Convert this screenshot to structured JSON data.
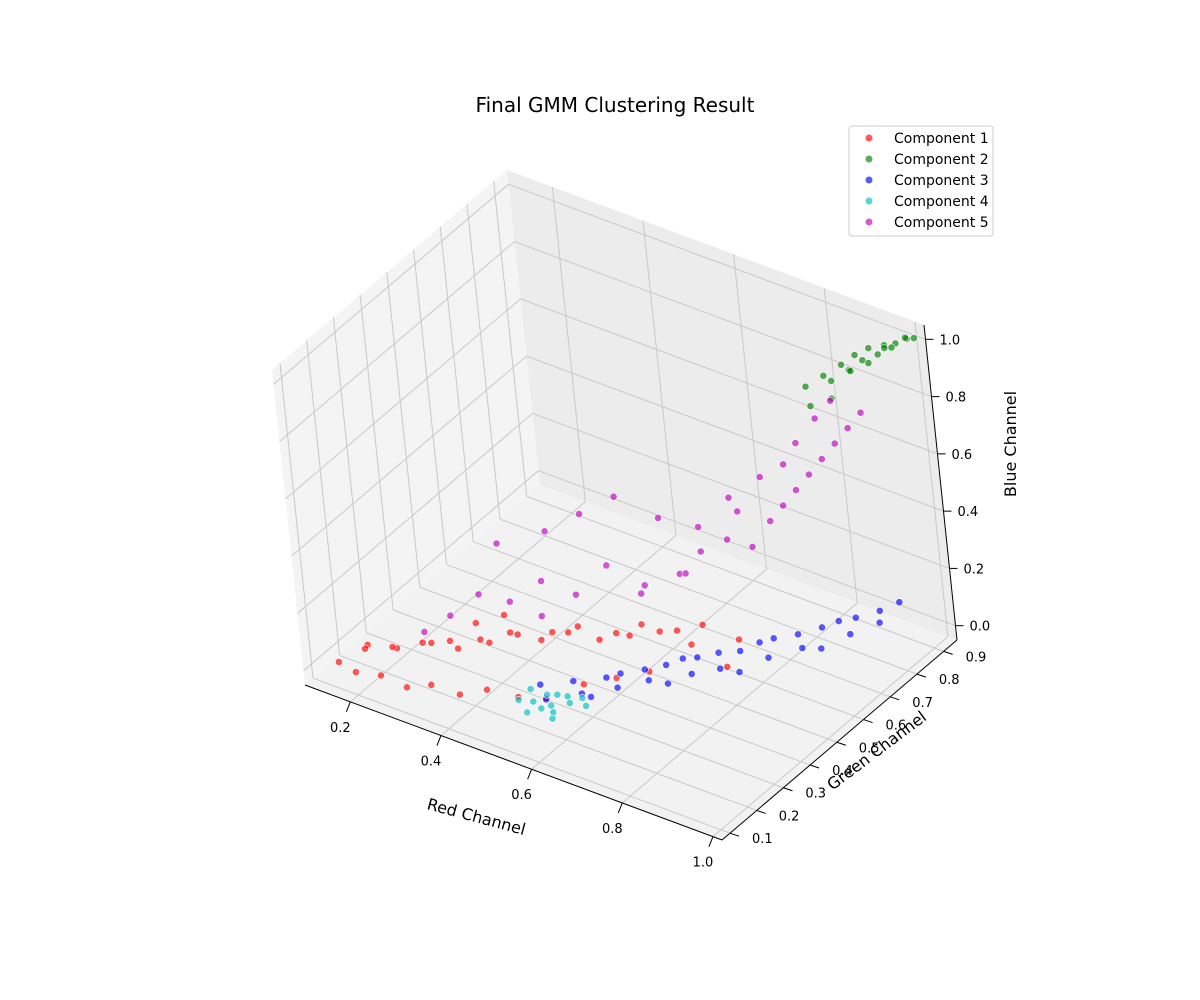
{
  "chart_data": {
    "type": "scatter",
    "projection": "3d",
    "title": "Final GMM Clustering Result",
    "xlabel": "Red Channel",
    "ylabel": "Green Channel",
    "zlabel": "Blue Channel",
    "xlim": [
      0.1,
      1.02
    ],
    "ylim": [
      0.07,
      0.95
    ],
    "zlim": [
      -0.05,
      1.05
    ],
    "xticks": [
      "0.2",
      "0.4",
      "0.6",
      "0.8",
      "1.0"
    ],
    "yticks": [
      "0.1",
      "0.2",
      "0.3",
      "0.4",
      "0.5",
      "0.6",
      "0.7",
      "0.8",
      "0.9"
    ],
    "zticks": [
      "0.0",
      "0.2",
      "0.4",
      "0.6",
      "0.8",
      "1.0"
    ],
    "grid": true,
    "legend_position": "top-right",
    "series": [
      {
        "name": "Component 1",
        "color": "#ff0000",
        "x": [
          0.15,
          0.18,
          0.2,
          0.22,
          0.25,
          0.28,
          0.3,
          0.32,
          0.35,
          0.38,
          0.4,
          0.42,
          0.45,
          0.48,
          0.5,
          0.52,
          0.55,
          0.58,
          0.6,
          0.62,
          0.65,
          0.68,
          0.7,
          0.72,
          0.75,
          0.78,
          0.8,
          0.55,
          0.5,
          0.45,
          0.4,
          0.35,
          0.3,
          0.25,
          0.2,
          0.6,
          0.65,
          0.7,
          0.42,
          0.38
        ],
        "y": [
          0.12,
          0.18,
          0.14,
          0.22,
          0.16,
          0.25,
          0.19,
          0.28,
          0.21,
          0.3,
          0.24,
          0.34,
          0.27,
          0.37,
          0.3,
          0.4,
          0.32,
          0.44,
          0.35,
          0.47,
          0.38,
          0.5,
          0.41,
          0.53,
          0.44,
          0.56,
          0.48,
          0.22,
          0.2,
          0.17,
          0.15,
          0.13,
          0.12,
          0.11,
          0.1,
          0.28,
          0.32,
          0.36,
          0.3,
          0.26
        ],
        "z": [
          0.02,
          0.05,
          0.08,
          0.03,
          0.1,
          0.06,
          0.12,
          0.04,
          0.14,
          0.08,
          0.15,
          0.1,
          0.18,
          0.12,
          0.16,
          0.14,
          0.2,
          0.12,
          0.18,
          0.15,
          0.2,
          0.14,
          0.22,
          0.16,
          0.18,
          0.12,
          0.1,
          0.05,
          0.04,
          0.06,
          0.03,
          0.05,
          0.02,
          0.04,
          0.03,
          0.08,
          0.1,
          0.12,
          0.2,
          0.18
        ]
      },
      {
        "name": "Component 2",
        "color": "#008000",
        "x": [
          0.82,
          0.85,
          0.88,
          0.9,
          0.92,
          0.95,
          0.97,
          0.99,
          0.86,
          0.89,
          0.91,
          0.94,
          0.96,
          0.98,
          0.87,
          0.93,
          0.84,
          0.9,
          0.95,
          1.0
        ],
        "y": [
          0.82,
          0.84,
          0.86,
          0.88,
          0.9,
          0.91,
          0.92,
          0.93,
          0.85,
          0.87,
          0.89,
          0.9,
          0.92,
          0.94,
          0.83,
          0.88,
          0.8,
          0.86,
          0.91,
          0.94
        ],
        "z": [
          0.82,
          0.86,
          0.9,
          0.93,
          0.95,
          0.97,
          0.98,
          1.0,
          0.84,
          0.88,
          0.91,
          0.94,
          0.96,
          0.99,
          0.8,
          0.92,
          0.78,
          0.89,
          0.96,
          1.0
        ]
      },
      {
        "name": "Component 3",
        "color": "#0000ff",
        "x": [
          0.5,
          0.55,
          0.6,
          0.62,
          0.65,
          0.68,
          0.7,
          0.72,
          0.75,
          0.78,
          0.8,
          0.82,
          0.85,
          0.88,
          0.9,
          0.92,
          0.95,
          0.97,
          0.58,
          0.63,
          0.67,
          0.73,
          0.77,
          0.83,
          0.87,
          0.93,
          0.53,
          0.6,
          0.7,
          0.8,
          0.9,
          0.96
        ],
        "y": [
          0.28,
          0.32,
          0.36,
          0.38,
          0.42,
          0.45,
          0.48,
          0.5,
          0.53,
          0.56,
          0.6,
          0.62,
          0.66,
          0.7,
          0.73,
          0.76,
          0.8,
          0.84,
          0.3,
          0.35,
          0.4,
          0.46,
          0.5,
          0.58,
          0.64,
          0.72,
          0.25,
          0.3,
          0.42,
          0.52,
          0.66,
          0.78
        ],
        "z": [
          0.02,
          0.03,
          0.04,
          0.05,
          0.05,
          0.06,
          0.07,
          0.07,
          0.08,
          0.08,
          0.09,
          0.1,
          0.1,
          0.11,
          0.12,
          0.12,
          0.13,
          0.14,
          0.02,
          0.03,
          0.04,
          0.05,
          0.06,
          0.07,
          0.08,
          0.1,
          0.01,
          0.02,
          0.03,
          0.05,
          0.08,
          0.11
        ]
      },
      {
        "name": "Component 4",
        "color": "#00bfbf",
        "x": [
          0.5,
          0.52,
          0.54,
          0.56,
          0.58,
          0.6,
          0.53,
          0.55,
          0.57,
          0.59,
          0.51,
          0.55,
          0.58,
          0.62
        ],
        "y": [
          0.2,
          0.22,
          0.24,
          0.22,
          0.25,
          0.27,
          0.18,
          0.2,
          0.21,
          0.24,
          0.23,
          0.26,
          0.19,
          0.25
        ],
        "z": [
          0.03,
          0.02,
          0.04,
          0.03,
          0.05,
          0.04,
          0.02,
          0.03,
          0.02,
          0.04,
          0.05,
          0.03,
          0.02,
          0.04
        ]
      },
      {
        "name": "Component 5",
        "color": "#bf00bf",
        "x": [
          0.3,
          0.35,
          0.4,
          0.45,
          0.5,
          0.55,
          0.6,
          0.65,
          0.7,
          0.72,
          0.75,
          0.78,
          0.8,
          0.82,
          0.84,
          0.86,
          0.88,
          0.9,
          0.92,
          0.94,
          0.5,
          0.55,
          0.6,
          0.65,
          0.7,
          0.75,
          0.8,
          0.85,
          0.88,
          0.9,
          0.42,
          0.48,
          0.62,
          0.68,
          0.76,
          0.83
        ],
        "y": [
          0.2,
          0.22,
          0.25,
          0.28,
          0.32,
          0.36,
          0.4,
          0.45,
          0.5,
          0.55,
          0.6,
          0.64,
          0.68,
          0.7,
          0.72,
          0.74,
          0.76,
          0.78,
          0.8,
          0.82,
          0.35,
          0.4,
          0.45,
          0.52,
          0.58,
          0.62,
          0.66,
          0.72,
          0.75,
          0.78,
          0.3,
          0.34,
          0.48,
          0.55,
          0.63,
          0.7
        ],
        "z": [
          0.15,
          0.22,
          0.3,
          0.28,
          0.35,
          0.3,
          0.4,
          0.32,
          0.35,
          0.4,
          0.42,
          0.38,
          0.45,
          0.5,
          0.55,
          0.6,
          0.65,
          0.7,
          0.75,
          0.8,
          0.5,
          0.55,
          0.6,
          0.5,
          0.45,
          0.55,
          0.62,
          0.72,
          0.8,
          0.85,
          0.45,
          0.2,
          0.25,
          0.3,
          0.5,
          0.65
        ]
      }
    ]
  }
}
